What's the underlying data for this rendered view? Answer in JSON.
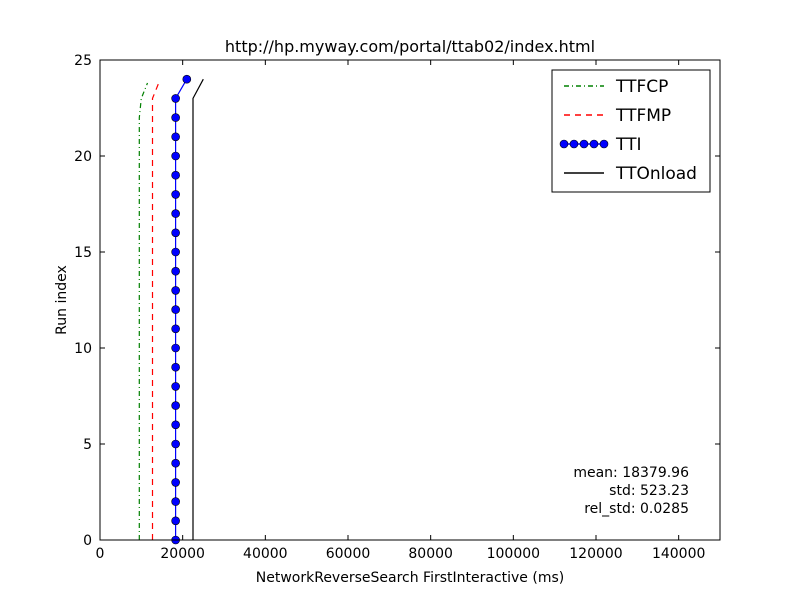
{
  "chart_data": {
    "type": "line",
    "title": "http://hp.myway.com/portal/ttab02/index.html",
    "xlabel": "NetworkReverseSearch FirstInteractive (ms)",
    "ylabel": "Run index",
    "xlim": [
      0,
      150000
    ],
    "ylim": [
      0,
      25
    ],
    "xticks": [
      0,
      20000,
      40000,
      60000,
      80000,
      100000,
      120000,
      140000
    ],
    "yticks": [
      0,
      5,
      10,
      15,
      20,
      25
    ],
    "grid": false,
    "legend": {
      "position": "top-right"
    },
    "stats": [
      "mean: 18379.96",
      "std: 523.23",
      "rel_std: 0.0285"
    ],
    "series": [
      {
        "name": "TTFCP",
        "color": "#008000",
        "dash": "dashdot",
        "marker": "none",
        "x": [
          9500,
          9500,
          9500,
          9500,
          9500,
          9500,
          9500,
          9500,
          9500,
          9500,
          9500,
          9500,
          9500,
          9500,
          9500,
          9500,
          9500,
          9500,
          9500,
          9500,
          9500,
          9500,
          9500,
          10000,
          11500
        ],
        "y": [
          0,
          1,
          2,
          3,
          4,
          5,
          6,
          7,
          8,
          9,
          10,
          11,
          12,
          13,
          14,
          15,
          16,
          17,
          18,
          19,
          20,
          21,
          22,
          23,
          23.8
        ]
      },
      {
        "name": "TTFMP",
        "color": "#ff0000",
        "dash": "dashed",
        "marker": "none",
        "x": [
          12700,
          12700,
          12700,
          12700,
          12700,
          12700,
          12700,
          12700,
          12700,
          12700,
          12700,
          12700,
          12700,
          12700,
          12700,
          12700,
          12700,
          12700,
          12700,
          12700,
          12700,
          12700,
          12700,
          12700,
          14200
        ],
        "y": [
          0,
          1,
          2,
          3,
          4,
          5,
          6,
          7,
          8,
          9,
          10,
          11,
          12,
          13,
          14,
          15,
          16,
          17,
          18,
          19,
          20,
          21,
          22,
          23,
          23.8
        ]
      },
      {
        "name": "TTI",
        "color": "#0000ff",
        "dash": "solid",
        "marker": "circle",
        "x": [
          18300,
          18300,
          18300,
          18300,
          18300,
          18300,
          18300,
          18300,
          18300,
          18300,
          18300,
          18300,
          18300,
          18300,
          18300,
          18300,
          18300,
          18300,
          18300,
          18300,
          18300,
          18300,
          18300,
          18300,
          21000
        ],
        "y": [
          0,
          1,
          2,
          3,
          4,
          5,
          6,
          7,
          8,
          9,
          10,
          11,
          12,
          13,
          14,
          15,
          16,
          17,
          18,
          19,
          20,
          21,
          22,
          23,
          24
        ]
      },
      {
        "name": "TTOnload",
        "color": "#000000",
        "dash": "solid",
        "marker": "none",
        "x": [
          22500,
          22500,
          22500,
          22500,
          22500,
          22500,
          22500,
          22500,
          22500,
          22500,
          22500,
          22500,
          22500,
          22500,
          22500,
          22500,
          22500,
          22500,
          22500,
          22500,
          22500,
          22500,
          22500,
          22500,
          25000
        ],
        "y": [
          0,
          1,
          2,
          3,
          4,
          5,
          6,
          7,
          8,
          9,
          10,
          11,
          12,
          13,
          14,
          15,
          16,
          17,
          18,
          19,
          20,
          21,
          22,
          23,
          24
        ]
      }
    ]
  }
}
